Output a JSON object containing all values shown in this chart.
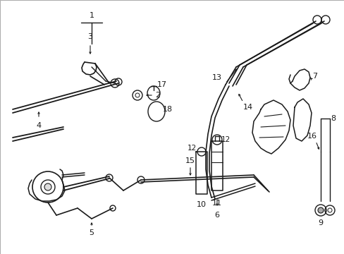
{
  "background_color": "#ffffff",
  "line_color": "#1a1a1a",
  "line_width": 1.0,
  "fig_width": 4.89,
  "fig_height": 3.6,
  "dpi": 100,
  "border_color": "#cccccc",
  "gray_line": "#555555"
}
